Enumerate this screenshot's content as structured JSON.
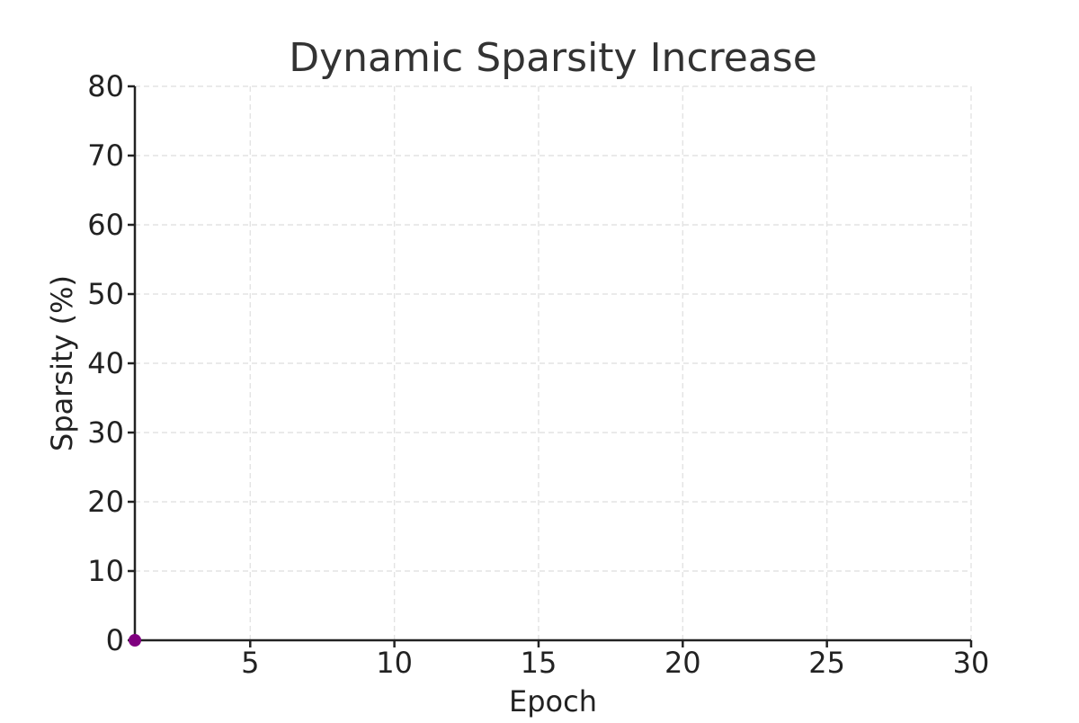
{
  "chart_data": {
    "type": "line",
    "title": "Dynamic Sparsity Increase",
    "xlabel": "Epoch",
    "ylabel": "Sparsity (%)",
    "xlim": [
      1,
      30
    ],
    "ylim": [
      0,
      80
    ],
    "x_ticks": [
      5,
      10,
      15,
      20,
      25,
      30
    ],
    "y_ticks": [
      0,
      10,
      20,
      30,
      40,
      50,
      60,
      70,
      80
    ],
    "grid": true,
    "series": [
      {
        "color": "#800080",
        "marker": "circle",
        "x": [
          1
        ],
        "y": [
          0
        ]
      }
    ]
  }
}
